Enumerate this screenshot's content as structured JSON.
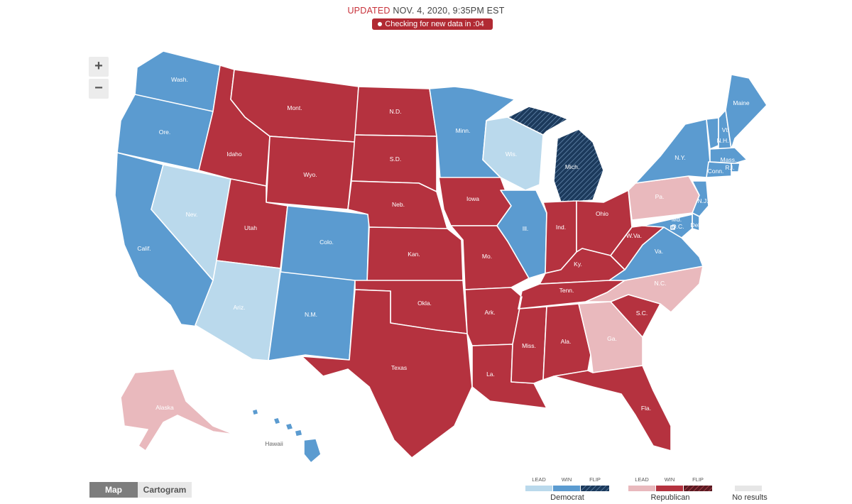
{
  "header": {
    "updated_label": "UPDATED",
    "updated_time": "NOV. 4, 2020, 9:35PM EST",
    "checking": "Checking for new data in :04"
  },
  "zoom": {
    "in": "+",
    "out": "−"
  },
  "view_toggle": {
    "map": "Map",
    "cartogram": "Cartogram",
    "selected": "Map"
  },
  "colors": {
    "dem_lead": "#bad9ec",
    "dem_win": "#5b9bd0",
    "dem_flip": "#1c3a5c",
    "rep_lead": "#e9b9bd",
    "rep_win": "#b5323f",
    "rep_flip": "#5a1a22",
    "no_results": "#e6e6e6"
  },
  "legend": {
    "democrat": {
      "title": "Democrat",
      "lead": "LEAD",
      "win": "WIN",
      "flip": "FLIP"
    },
    "republican": {
      "title": "Republican",
      "lead": "LEAD",
      "win": "WIN",
      "flip": "FLIP"
    },
    "no_results": "No results"
  },
  "states": {
    "wa": {
      "label": "Wash.",
      "status": "dem_win"
    },
    "or": {
      "label": "Ore.",
      "status": "dem_win"
    },
    "ca": {
      "label": "Calif.",
      "status": "dem_win"
    },
    "nv": {
      "label": "Nev.",
      "status": "dem_lead"
    },
    "id": {
      "label": "Idaho",
      "status": "rep_win"
    },
    "mt": {
      "label": "Mont.",
      "status": "rep_win"
    },
    "wy": {
      "label": "Wyo.",
      "status": "rep_win"
    },
    "ut": {
      "label": "Utah",
      "status": "rep_win"
    },
    "az": {
      "label": "Ariz.",
      "status": "dem_lead"
    },
    "co": {
      "label": "Colo.",
      "status": "dem_win"
    },
    "nm": {
      "label": "N.M.",
      "status": "dem_win"
    },
    "nd": {
      "label": "N.D.",
      "status": "rep_win"
    },
    "sd": {
      "label": "S.D.",
      "status": "rep_win"
    },
    "ne": {
      "label": "Neb.",
      "status": "rep_win"
    },
    "ks": {
      "label": "Kan.",
      "status": "rep_win"
    },
    "ok": {
      "label": "Okla.",
      "status": "rep_win"
    },
    "tx": {
      "label": "Texas",
      "status": "rep_win"
    },
    "mn": {
      "label": "Minn.",
      "status": "dem_win"
    },
    "ia": {
      "label": "Iowa",
      "status": "rep_win"
    },
    "mo": {
      "label": "Mo.",
      "status": "rep_win"
    },
    "ar": {
      "label": "Ark.",
      "status": "rep_win"
    },
    "la": {
      "label": "La.",
      "status": "rep_win"
    },
    "wi": {
      "label": "Wis.",
      "status": "dem_lead"
    },
    "il": {
      "label": "Ill.",
      "status": "dem_win"
    },
    "mi": {
      "label": "Mich.",
      "status": "dem_flip"
    },
    "in": {
      "label": "Ind.",
      "status": "rep_win"
    },
    "oh": {
      "label": "Ohio",
      "status": "rep_win"
    },
    "ky": {
      "label": "Ky.",
      "status": "rep_win"
    },
    "tn": {
      "label": "Tenn.",
      "status": "rep_win"
    },
    "ms": {
      "label": "Miss.",
      "status": "rep_win"
    },
    "al": {
      "label": "Ala.",
      "status": "rep_win"
    },
    "ga": {
      "label": "Ga.",
      "status": "rep_lead"
    },
    "fl": {
      "label": "Fla.",
      "status": "rep_win"
    },
    "sc": {
      "label": "S.C.",
      "status": "rep_win"
    },
    "nc": {
      "label": "N.C.",
      "status": "rep_lead"
    },
    "va": {
      "label": "Va.",
      "status": "dem_win"
    },
    "wv": {
      "label": "W.Va.",
      "status": "rep_win"
    },
    "pa": {
      "label": "Pa.",
      "status": "rep_lead"
    },
    "ny": {
      "label": "N.Y.",
      "status": "dem_win"
    },
    "vt": {
      "label": "Vt.",
      "status": "dem_win"
    },
    "nh": {
      "label": "N.H.",
      "status": "dem_win"
    },
    "me": {
      "label": "Maine",
      "status": "dem_win"
    },
    "ma": {
      "label": "Mass.",
      "status": "dem_win"
    },
    "ri": {
      "label": "R.I.",
      "status": "dem_win"
    },
    "ct": {
      "label": "Conn.",
      "status": "dem_win"
    },
    "nj": {
      "label": "N.J.",
      "status": "dem_win"
    },
    "de": {
      "label": "Del.",
      "status": "dem_win"
    },
    "md": {
      "label": "Md.",
      "status": "dem_win"
    },
    "dc": {
      "label": "D.C.",
      "status": "dem_win"
    },
    "ak": {
      "label": "Alaska",
      "status": "rep_lead"
    },
    "hi": {
      "label": "Hawaii",
      "status": "dem_win"
    }
  }
}
